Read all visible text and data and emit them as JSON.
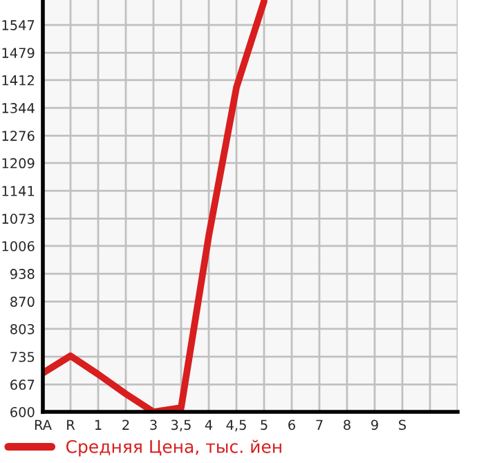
{
  "chart_data": {
    "type": "line",
    "categories": [
      "RA",
      "R",
      "1",
      "2",
      "3",
      "3,5",
      "4",
      "4,5",
      "5",
      "6",
      "7",
      "8",
      "9",
      "S",
      null,
      null
    ],
    "series": [
      {
        "name": "Средняя Цена, тыс. йен",
        "color": "#d81e1e",
        "values": [
          695,
          737,
          692,
          644,
          600,
          610,
          1031,
          1394,
          1605,
          null,
          null,
          null,
          null,
          null,
          null,
          null
        ]
      }
    ],
    "ylim": [
      600,
      1608
    ],
    "yticks": [
      600,
      667,
      735,
      803,
      870,
      938,
      1006,
      1073,
      1141,
      1209,
      1276,
      1344,
      1412,
      1479,
      1547
    ],
    "grid": true,
    "legend": "bottom",
    "marker": "none",
    "line_style": "solid"
  }
}
